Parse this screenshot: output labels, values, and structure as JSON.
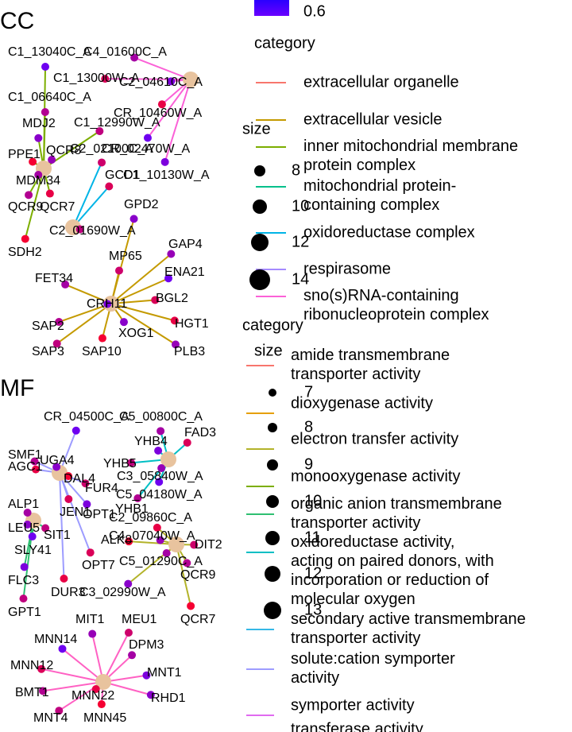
{
  "cc": {
    "title": "CC",
    "nodes": [
      "C1_13040C_A",
      "C4_01600C_A",
      "C1_13000W_A",
      "C2_04610C_A",
      "C1_06640C_A",
      "CR_10460W_A",
      "MDJ2",
      "C1_12990W_A",
      "PPE1",
      "QCR8",
      "C2_02100C_A",
      "CR_02470W_A",
      "MDM34",
      "GCD1",
      "C1_10130W_A",
      "QCR9",
      "QCR7",
      "GPD2",
      "C2_01690W_A",
      "SDH2",
      "GAP4",
      "MP65",
      "ENA21",
      "FET34",
      "BGL2",
      "CRH11",
      "SAP2",
      "HGT1",
      "XOG1",
      "SAP3",
      "SAP10",
      "PLB3"
    ]
  },
  "mf": {
    "title": "MF",
    "nodes": [
      "CR_04500C_A",
      "C5_00800C_A",
      "FAD3",
      "YHB4",
      "SMF1",
      "AGC1",
      "UGA4",
      "YHB5",
      "DAL4",
      "C3_05840W_A",
      "FUR4",
      "C5_04180W_A",
      "ALP1",
      "JEN1",
      "OPT1",
      "YHB1",
      "C2_09860C_A",
      "LEU5",
      "SIT1",
      "ALK8",
      "C4_07040W_A",
      "DIT2",
      "SLY41",
      "C5_01290C_A",
      "OPT7",
      "FLC3",
      "QCR9",
      "DUR3",
      "C3_02990W_A",
      "GPT1",
      "QCR7",
      "MIT1",
      "MEU1",
      "MNN14",
      "DPM3",
      "MNN12",
      "MNT1",
      "BMT1",
      "MNN22",
      "RHD1",
      "MNT4",
      "MNN45"
    ]
  },
  "legend": {
    "colorbar_ticks": [
      0.6
    ],
    "cc_category_title": "category",
    "cc_categories": [
      {
        "name": "extracellular organelle",
        "color": "#f8766d"
      },
      {
        "name": "extracellular vesicle",
        "color": "#c49a00"
      },
      {
        "name": "inner mitochondrial membrane\nprotein complex",
        "color": "#7cae00"
      },
      {
        "name": "mitochondrial protein-\ncontaining complex",
        "color": "#00c08b"
      },
      {
        "name": "oxidoreductase complex",
        "color": "#00b4e6"
      },
      {
        "name": "respirasome",
        "color": "#a58aff"
      },
      {
        "name": "sno(s)RNA-containing\nribonucleoprotein complex",
        "color": "#fb61d7"
      }
    ],
    "cc_size_title": "size",
    "cc_sizes": [
      8,
      10,
      12,
      14
    ],
    "mf_category_title": "category",
    "mf_size_title": "size",
    "mf_categories": [
      {
        "name": "amide transmembrane\ntransporter activity",
        "color": "#f8766d"
      },
      {
        "name": "dioxygenase activity",
        "color": "#e69f00"
      },
      {
        "name": "electron transfer activity",
        "color": "#b3b32a"
      },
      {
        "name": "monooxygenase activity",
        "color": "#7cae00"
      },
      {
        "name": "organic anion transmembrane\ntransporter activity",
        "color": "#2fbf71"
      },
      {
        "name": "oxidoreductase activity,\nacting on paired donors, with\nincorporation or reduction of\nmolecular oxygen",
        "color": "#00bfc4"
      },
      {
        "name": "secondary active transmembrane\ntransporter activity",
        "color": "#35b8e6"
      },
      {
        "name": "solute:cation symporter\nactivity",
        "color": "#9d9cff"
      },
      {
        "name": "symporter activity",
        "color": "#e06bf0"
      },
      {
        "name": "transferase activity",
        "color": "#ff61c3"
      }
    ],
    "mf_sizes": [
      7,
      8,
      9,
      10,
      11,
      12,
      13
    ]
  }
}
